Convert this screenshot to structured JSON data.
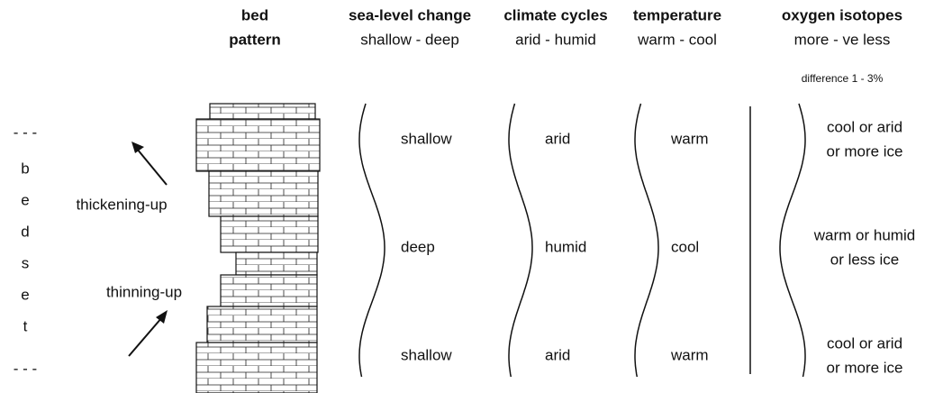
{
  "bedset": {
    "marks": [
      "- - -",
      "- - -"
    ],
    "letters": [
      "b",
      "e",
      "d",
      "s",
      "e",
      "t"
    ]
  },
  "trends": [
    "thickening-up",
    "thinning-up"
  ],
  "columns": [
    {
      "title": "bed",
      "subtitle": "pattern"
    },
    {
      "title": "sea-level change",
      "subtitle": "shallow - deep",
      "rows": [
        "shallow",
        "deep",
        "shallow"
      ]
    },
    {
      "title": "climate cycles",
      "subtitle": "arid - humid",
      "rows": [
        "arid",
        "humid",
        "arid"
      ]
    },
    {
      "title": "temperature",
      "subtitle": "warm - cool",
      "rows": [
        "warm",
        "cool",
        "warm"
      ]
    },
    {
      "title": "oxygen isotopes",
      "subtitle": "more - ve less",
      "note": "difference 1 - 3%",
      "rows": [
        [
          "cool or arid",
          "or more ice"
        ],
        [
          "warm or humid",
          "or less ice"
        ],
        [
          "cool or arid",
          "or more ice"
        ]
      ]
    }
  ]
}
